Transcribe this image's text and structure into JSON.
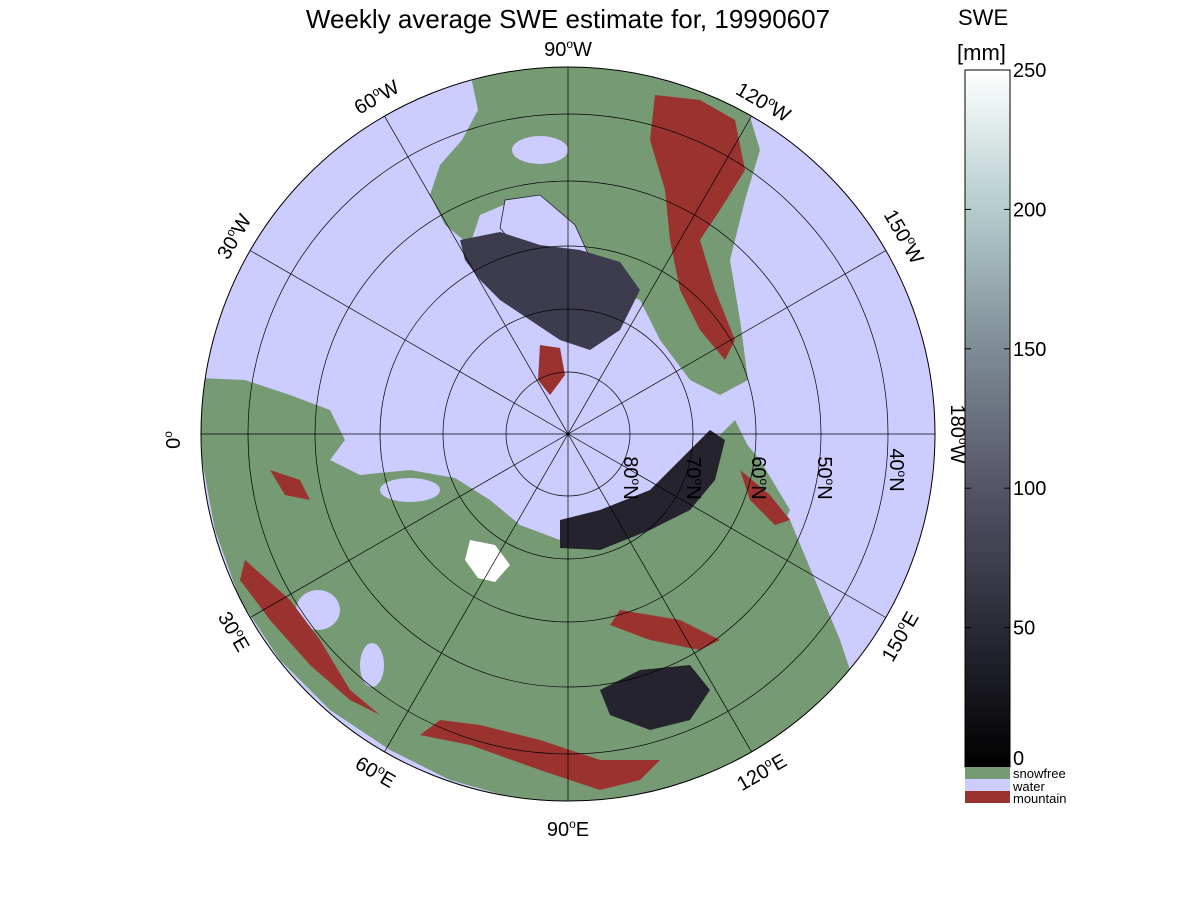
{
  "title": "Weekly average SWE estimate for, 19990607",
  "colorbar": {
    "label_line1": "SWE",
    "label_line2": "[mm]",
    "ticks": [
      0,
      50,
      100,
      150,
      200,
      250
    ],
    "range": [
      0,
      250
    ]
  },
  "legend": [
    {
      "key": "snowfree",
      "label": "snowfree",
      "color": "#769a73"
    },
    {
      "key": "water",
      "label": "water",
      "color": "#ccccff"
    },
    {
      "key": "mountain",
      "label": "mountain",
      "color": "#9a3230"
    }
  ],
  "lon_labels": [
    {
      "deg": "90",
      "sup": "o",
      "hem": "W"
    },
    {
      "deg": "120",
      "sup": "o",
      "hem": "W"
    },
    {
      "deg": "150",
      "sup": "o",
      "hem": "W"
    },
    {
      "deg": "180",
      "sup": "o",
      "hem": "W"
    },
    {
      "deg": "150",
      "sup": "o",
      "hem": "E"
    },
    {
      "deg": "120",
      "sup": "o",
      "hem": "E"
    },
    {
      "deg": "90",
      "sup": "o",
      "hem": "E"
    },
    {
      "deg": "60",
      "sup": "o",
      "hem": "E"
    },
    {
      "deg": "30",
      "sup": "o",
      "hem": "E"
    },
    {
      "deg": "0",
      "sup": "o",
      "hem": ""
    },
    {
      "deg": "30",
      "sup": "o",
      "hem": "W"
    },
    {
      "deg": "60",
      "sup": "o",
      "hem": "W"
    }
  ],
  "lat_labels": [
    {
      "deg": "80",
      "sup": "o",
      "hem": "N"
    },
    {
      "deg": "70",
      "sup": "o",
      "hem": "N"
    },
    {
      "deg": "60",
      "sup": "o",
      "hem": "N"
    },
    {
      "deg": "50",
      "sup": "o",
      "hem": "N"
    },
    {
      "deg": "40",
      "sup": "o",
      "hem": "N"
    }
  ],
  "colors": {
    "snowfree": "#769a73",
    "water": "#ccccff",
    "mountain": "#9a3230",
    "snow_dark": "#24232e",
    "snow_mid": "#3c3c4e",
    "snow_high": "#ffffff"
  }
}
